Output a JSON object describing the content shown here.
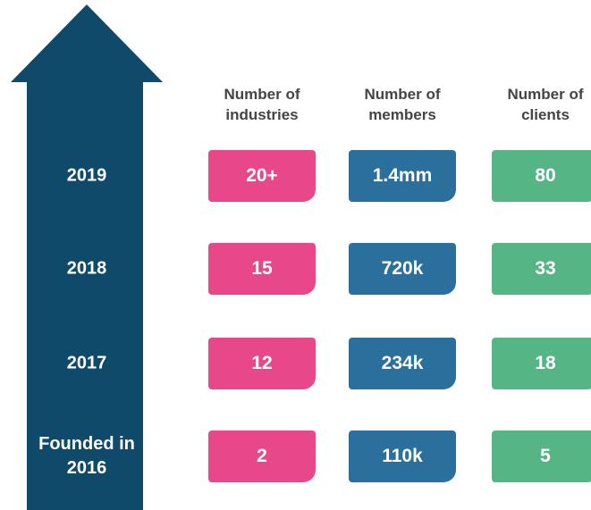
{
  "table": {
    "columns": [
      "Number of industries",
      "Number of members",
      "Number of clients"
    ],
    "rows": [
      {
        "label": "2019",
        "cells": [
          "20+",
          "1.4mm",
          "80"
        ]
      },
      {
        "label": "2018",
        "cells": [
          "15",
          "720k",
          "33"
        ]
      },
      {
        "label": "2017",
        "cells": [
          "12",
          "234k",
          "18"
        ]
      },
      {
        "label": "Founded in 2016",
        "cells": [
          "2",
          "110k",
          "5"
        ]
      }
    ]
  }
}
